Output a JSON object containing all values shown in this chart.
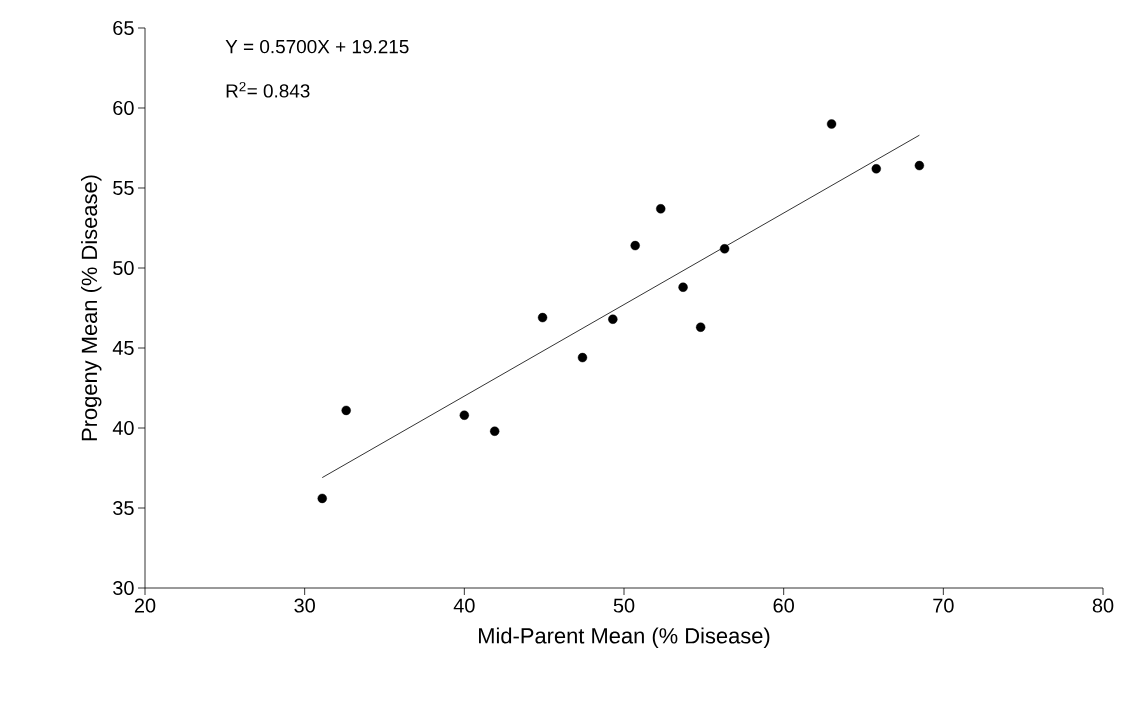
{
  "chart_data": {
    "type": "scatter",
    "xlabel": "Mid-Parent Mean (% Disease)",
    "ylabel": "Progeny Mean (% Disease)",
    "xlim": [
      20,
      80
    ],
    "ylim": [
      30,
      65
    ],
    "xticks": [
      20,
      30,
      40,
      50,
      60,
      70,
      80
    ],
    "yticks": [
      30,
      35,
      40,
      45,
      50,
      55,
      60,
      65
    ],
    "grid": false,
    "annotations": [
      "Y = 0.5700X + 19.215",
      "R$^{2}$= 0.843"
    ],
    "series": [
      {
        "color": "#000000",
        "marker": "circle",
        "x": [
          31.1,
          32.6,
          40.0,
          41.9,
          44.9,
          47.4,
          49.3,
          50.7,
          52.3,
          53.7,
          54.8,
          56.3,
          63.0,
          65.8,
          68.5
        ],
        "values": [
          35.6,
          41.1,
          40.8,
          39.8,
          46.9,
          44.4,
          46.8,
          51.4,
          53.7,
          48.8,
          46.3,
          51.2,
          59.0,
          56.2,
          56.4
        ]
      },
      {
        "type": "line",
        "color": "#000000",
        "marker": "none",
        "line_style": "solid",
        "x": [
          31.1,
          68.5
        ],
        "values": [
          36.9,
          58.3
        ]
      }
    ]
  }
}
